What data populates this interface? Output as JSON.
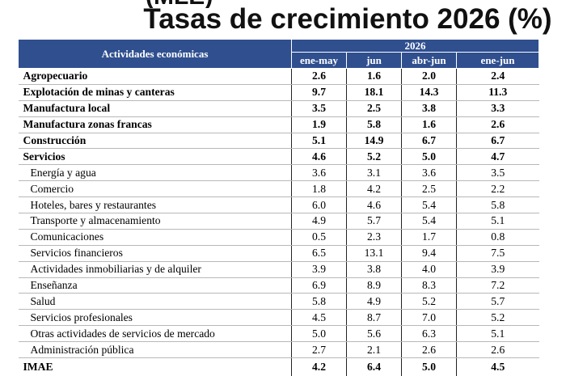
{
  "slide": {
    "partial_top_text": "(MLE)",
    "title": "Tasas de crecimiento 2026 (%)"
  },
  "table": {
    "header": {
      "activity_label": "Actividades económicas",
      "year": "2026",
      "periods": [
        "ene-may",
        "jun",
        "abr-jun",
        "ene-jun"
      ]
    },
    "rows": [
      {
        "name": "Agropecuario",
        "bold": true,
        "values": [
          "2.6",
          "1.6",
          "2.0",
          "2.4"
        ]
      },
      {
        "name": "Explotación de minas y canteras",
        "bold": true,
        "values": [
          "9.7",
          "18.1",
          "14.3",
          "11.3"
        ]
      },
      {
        "name": "Manufactura local",
        "bold": true,
        "values": [
          "3.5",
          "2.5",
          "3.8",
          "3.3"
        ]
      },
      {
        "name": "Manufactura zonas francas",
        "bold": true,
        "values": [
          "1.9",
          "5.8",
          "1.6",
          "2.6"
        ]
      },
      {
        "name": "Construcción",
        "bold": true,
        "values": [
          "5.1",
          "14.9",
          "6.7",
          "6.7"
        ]
      },
      {
        "name": "Servicios",
        "bold": true,
        "values": [
          "4.6",
          "5.2",
          "5.0",
          "4.7"
        ]
      },
      {
        "name": "Energía y agua",
        "bold": false,
        "values": [
          "3.6",
          "3.1",
          "3.6",
          "3.5"
        ]
      },
      {
        "name": "Comercio",
        "bold": false,
        "values": [
          "1.8",
          "4.2",
          "2.5",
          "2.2"
        ]
      },
      {
        "name": "Hoteles, bares y restaurantes",
        "bold": false,
        "values": [
          "6.0",
          "4.6",
          "5.4",
          "5.8"
        ]
      },
      {
        "name": "Transporte y almacenamiento",
        "bold": false,
        "values": [
          "4.9",
          "5.7",
          "5.4",
          "5.1"
        ]
      },
      {
        "name": "Comunicaciones",
        "bold": false,
        "values": [
          "0.5",
          "2.3",
          "1.7",
          "0.8"
        ]
      },
      {
        "name": "Servicios financieros",
        "bold": false,
        "values": [
          "6.5",
          "13.1",
          "9.4",
          "7.5"
        ]
      },
      {
        "name": "Actividades inmobiliarias y de alquiler",
        "bold": false,
        "values": [
          "3.9",
          "3.8",
          "4.0",
          "3.9"
        ]
      },
      {
        "name": "Enseñanza",
        "bold": false,
        "values": [
          "6.9",
          "8.9",
          "8.3",
          "7.2"
        ]
      },
      {
        "name": "Salud",
        "bold": false,
        "values": [
          "5.8",
          "4.9",
          "5.2",
          "5.7"
        ]
      },
      {
        "name": "Servicios profesionales",
        "bold": false,
        "values": [
          "4.5",
          "8.7",
          "7.0",
          "5.2"
        ]
      },
      {
        "name": "Otras actividades de servicios de mercado",
        "bold": false,
        "values": [
          "5.0",
          "5.6",
          "6.3",
          "5.1"
        ]
      },
      {
        "name": "Administración pública",
        "bold": false,
        "values": [
          "2.7",
          "2.1",
          "2.6",
          "2.6"
        ]
      },
      {
        "name": "IMAE",
        "bold": true,
        "values": [
          "4.2",
          "6.4",
          "5.0",
          "4.5"
        ]
      }
    ]
  },
  "colors": {
    "header_bg": "#2f4f8f",
    "header_text": "#ffffff"
  }
}
